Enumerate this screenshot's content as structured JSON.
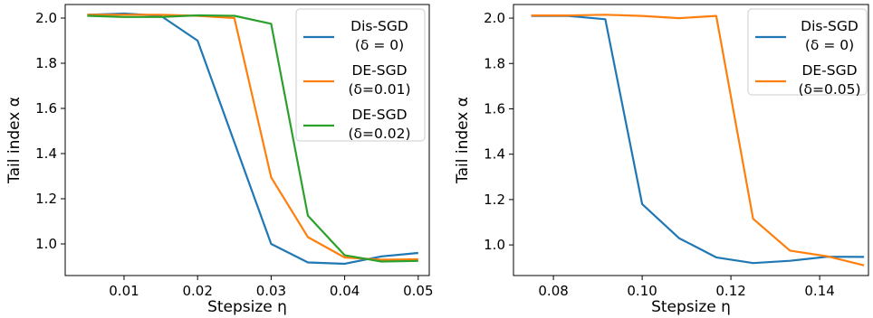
{
  "chart_data": [
    {
      "type": "line",
      "xlabel": "Stepsize η",
      "ylabel": "Tail index α",
      "xlim": [
        0.002,
        0.0515
      ],
      "ylim": [
        0.86,
        2.06
      ],
      "xticks": [
        0.01,
        0.02,
        0.03,
        0.04,
        0.05
      ],
      "xtick_labels": [
        "0.01",
        "0.02",
        "0.03",
        "0.04",
        "0.05"
      ],
      "yticks": [
        1.0,
        1.2,
        1.4,
        1.6,
        1.8,
        2.0
      ],
      "ytick_labels": [
        "1.0",
        "1.2",
        "1.4",
        "1.6",
        "1.8",
        "2.0"
      ],
      "legend_position": "top-right",
      "series": [
        {
          "name": "Dis-SGD",
          "subname": "(δ = 0)",
          "color": "#1f77b4",
          "x": [
            0.005,
            0.01,
            0.015,
            0.02,
            0.025,
            0.03,
            0.035,
            0.04,
            0.045,
            0.05
          ],
          "y": [
            2.015,
            2.02,
            2.01,
            1.9,
            1.45,
            1.0,
            0.918,
            0.912,
            0.945,
            0.96
          ]
        },
        {
          "name": "DE-SGD",
          "subname": "(δ=0.01)",
          "color": "#ff7f0e",
          "x": [
            0.005,
            0.01,
            0.015,
            0.02,
            0.025,
            0.03,
            0.035,
            0.04,
            0.045,
            0.05
          ],
          "y": [
            2.015,
            2.015,
            2.015,
            2.01,
            2.0,
            1.295,
            1.03,
            0.94,
            0.93,
            0.932
          ]
        },
        {
          "name": "DE-SGD",
          "subname": "(δ=0.02)",
          "color": "#2ca02c",
          "x": [
            0.005,
            0.01,
            0.015,
            0.02,
            0.025,
            0.03,
            0.035,
            0.04,
            0.045,
            0.05
          ],
          "y": [
            2.01,
            2.005,
            2.005,
            2.012,
            2.01,
            1.975,
            1.125,
            0.95,
            0.922,
            0.925
          ]
        }
      ]
    },
    {
      "type": "line",
      "xlabel": "Stepsize η",
      "ylabel": "Tail index α",
      "xlim": [
        0.071,
        0.151
      ],
      "ylim": [
        0.865,
        2.06
      ],
      "xticks": [
        0.08,
        0.1,
        0.12,
        0.14
      ],
      "xtick_labels": [
        "0.08",
        "0.10",
        "0.12",
        "0.14"
      ],
      "yticks": [
        1.0,
        1.2,
        1.4,
        1.6,
        1.8,
        2.0
      ],
      "ytick_labels": [
        "1.0",
        "1.2",
        "1.4",
        "1.6",
        "1.8",
        "2.0"
      ],
      "legend_position": "top-right",
      "series": [
        {
          "name": "Dis-SGD",
          "subname": "(δ = 0)",
          "color": "#1f77b4",
          "x": [
            0.075,
            0.0833,
            0.0917,
            0.1,
            0.1083,
            0.1167,
            0.125,
            0.1333,
            0.1417,
            0.15
          ],
          "y": [
            2.01,
            2.01,
            1.995,
            1.18,
            1.03,
            0.945,
            0.92,
            0.93,
            0.948,
            0.947
          ]
        },
        {
          "name": "DE-SGD",
          "subname": "(δ=0.05)",
          "color": "#ff7f0e",
          "x": [
            0.075,
            0.0833,
            0.0917,
            0.1,
            0.1083,
            0.1167,
            0.125,
            0.1333,
            0.1417,
            0.15
          ],
          "y": [
            2.012,
            2.012,
            2.015,
            2.01,
            2.0,
            2.01,
            1.115,
            0.975,
            0.95,
            0.91
          ]
        }
      ]
    }
  ]
}
